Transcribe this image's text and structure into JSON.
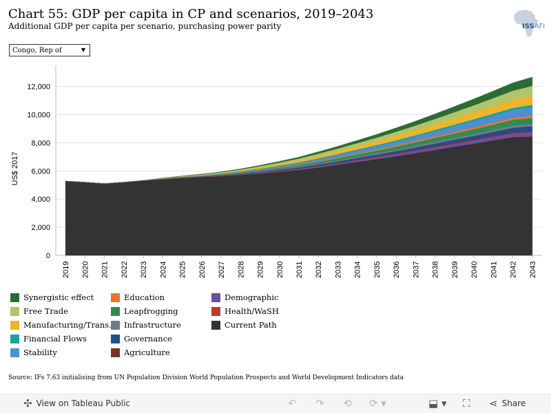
{
  "header": {
    "title": "Chart 55: GDP per capita in CP and scenarios, 2019–2043",
    "subtitle": "Additional GDP per capita per scenario, purchasing power parity"
  },
  "logo": {
    "iss": "ISS",
    "afi": "AFI",
    "color": "#1f5f9a"
  },
  "filter": {
    "selected": "Congo, Rep of"
  },
  "source": "Source: IFs 7.63 initialising from UN Population Division World Population Prospects and World Development Indicators data",
  "toolbar": {
    "view_label": "View on Tableau Public",
    "share_label": "Share"
  },
  "chart_data": {
    "type": "area",
    "stacked": true,
    "ylabel": "US$ 2017",
    "xlabel": "",
    "ylim": [
      0,
      13500
    ],
    "yticks": [
      0,
      2000,
      4000,
      6000,
      8000,
      10000,
      12000
    ],
    "ytick_labels": [
      "0",
      "2,000",
      "4,000",
      "6,000",
      "8,000",
      "10,000",
      "12,000"
    ],
    "grid": true,
    "legend_position": "bottom",
    "x": [
      "2019",
      "2020",
      "2021",
      "2022",
      "2023",
      "2024",
      "2025",
      "2026",
      "2027",
      "2028",
      "2029",
      "2030",
      "2031",
      "2032",
      "2033",
      "2034",
      "2035",
      "2036",
      "2037",
      "2038",
      "2039",
      "2040",
      "2041",
      "2042",
      "2043"
    ],
    "series": [
      {
        "name": "Current Path",
        "color": "#333333",
        "values": [
          5280,
          5200,
          5100,
          5200,
          5320,
          5420,
          5500,
          5570,
          5630,
          5720,
          5820,
          5950,
          6080,
          6250,
          6450,
          6650,
          6850,
          7050,
          7280,
          7500,
          7730,
          7950,
          8180,
          8400,
          8450
        ]
      },
      {
        "name": "Health/WaSH",
        "color": "#c0392b",
        "values": [
          0,
          0,
          0,
          0,
          0,
          0,
          0,
          0,
          0,
          0,
          0,
          0,
          0,
          0,
          0,
          0,
          0,
          0,
          0,
          0,
          0,
          0,
          10,
          20,
          30
        ]
      },
      {
        "name": "Demographic",
        "color": "#6a4fa0",
        "values": [
          0,
          0,
          0,
          0,
          0,
          5,
          10,
          15,
          25,
          35,
          50,
          60,
          70,
          90,
          100,
          120,
          140,
          160,
          180,
          200,
          220,
          240,
          260,
          280,
          300
        ]
      },
      {
        "name": "Agriculture",
        "color": "#7a3425",
        "values": [
          0,
          0,
          0,
          0,
          0,
          5,
          10,
          15,
          20,
          25,
          30,
          40,
          40,
          50,
          50,
          60,
          60,
          70,
          70,
          80,
          80,
          90,
          90,
          100,
          100
        ]
      },
      {
        "name": "Governance",
        "color": "#1f4e8c",
        "values": [
          0,
          0,
          0,
          0,
          0,
          5,
          10,
          15,
          20,
          30,
          40,
          50,
          60,
          70,
          80,
          100,
          110,
          130,
          150,
          170,
          190,
          210,
          240,
          270,
          300
        ]
      },
      {
        "name": "Infrastructure",
        "color": "#6f7b83",
        "values": [
          0,
          0,
          0,
          0,
          0,
          5,
          10,
          15,
          20,
          30,
          40,
          50,
          60,
          70,
          80,
          90,
          100,
          110,
          120,
          130,
          140,
          150,
          160,
          170,
          180
        ]
      },
      {
        "name": "Leapfrogging",
        "color": "#2e8b57",
        "values": [
          0,
          0,
          0,
          0,
          0,
          10,
          15,
          20,
          30,
          40,
          60,
          80,
          100,
          120,
          140,
          160,
          180,
          210,
          240,
          270,
          300,
          330,
          360,
          390,
          420
        ]
      },
      {
        "name": "Education",
        "color": "#e8762d",
        "values": [
          0,
          0,
          0,
          0,
          0,
          5,
          10,
          10,
          15,
          20,
          25,
          30,
          40,
          50,
          60,
          70,
          80,
          90,
          100,
          110,
          120,
          130,
          140,
          150,
          160
        ]
      },
      {
        "name": "Stability",
        "color": "#4f8fcf",
        "values": [
          0,
          0,
          0,
          0,
          0,
          10,
          20,
          30,
          40,
          60,
          80,
          100,
          120,
          150,
          180,
          210,
          240,
          270,
          300,
          350,
          400,
          450,
          500,
          550,
          600
        ]
      },
      {
        "name": "Financial Flows",
        "color": "#17a2a0",
        "values": [
          0,
          0,
          0,
          0,
          0,
          5,
          10,
          10,
          15,
          20,
          25,
          30,
          40,
          50,
          60,
          70,
          80,
          90,
          100,
          110,
          120,
          130,
          140,
          150,
          160
        ]
      },
      {
        "name": "Manufacturing/Trans...",
        "color": "#f0b429",
        "values": [
          0,
          0,
          0,
          0,
          0,
          10,
          20,
          30,
          50,
          70,
          90,
          110,
          140,
          170,
          200,
          230,
          270,
          310,
          350,
          390,
          440,
          490,
          540,
          600,
          650
        ]
      },
      {
        "name": "Free Trade",
        "color": "#b0c46a",
        "values": [
          0,
          0,
          0,
          0,
          0,
          10,
          20,
          30,
          40,
          60,
          80,
          100,
          130,
          160,
          190,
          220,
          260,
          300,
          340,
          390,
          440,
          500,
          560,
          620,
          700
        ]
      },
      {
        "name": "Synergistic effect",
        "color": "#2d6b35",
        "values": [
          0,
          0,
          0,
          0,
          0,
          5,
          10,
          20,
          30,
          40,
          60,
          80,
          100,
          130,
          160,
          190,
          230,
          270,
          310,
          350,
          400,
          450,
          500,
          560,
          620
        ]
      }
    ]
  },
  "legend": [
    {
      "label": "Synergistic effect",
      "color": "#2d6b35"
    },
    {
      "label": "Free Trade",
      "color": "#b0c46a"
    },
    {
      "label": "Manufacturing/Trans...",
      "color": "#f0b429"
    },
    {
      "label": "Financial Flows",
      "color": "#17a2a0"
    },
    {
      "label": "Stability",
      "color": "#4f8fcf"
    },
    {
      "label": "Education",
      "color": "#e8762d"
    },
    {
      "label": "Leapfrogging",
      "color": "#2e8b57"
    },
    {
      "label": "Infrastructure",
      "color": "#6f7b83"
    },
    {
      "label": "Governance",
      "color": "#1f4e8c"
    },
    {
      "label": "Agriculture",
      "color": "#7a3425"
    },
    {
      "label": "Demographic",
      "color": "#6a4fa0"
    },
    {
      "label": "Health/WaSH",
      "color": "#c0392b"
    },
    {
      "label": "Current Path",
      "color": "#333333"
    }
  ]
}
